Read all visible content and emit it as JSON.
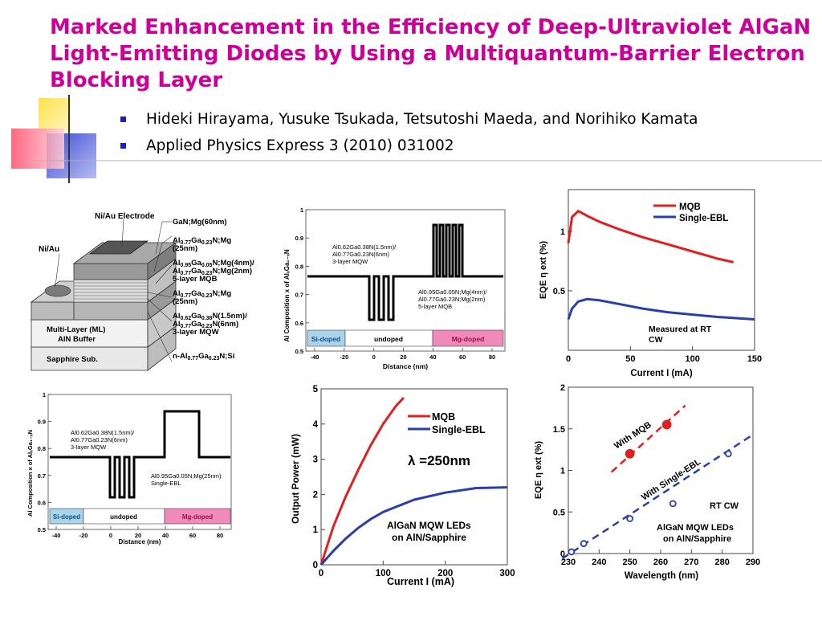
{
  "slide": {
    "title": "Marked Enhancement in the Efficiency of Deep-Ultraviolet AlGaN Light-Emitting Diodes by Using a Multiquantum-Barrier Electron Blocking Layer",
    "bullets": [
      "Hideki Hirayama, Yusuke Tsukada, Tetsutoshi Maeda, and Norihiko Kamata",
      "Applied Physics Express 3 (2010) 031002"
    ]
  },
  "colors": {
    "title": "#cc0099",
    "bullet": "#1f1fbf",
    "mqb": "#e02020",
    "ebl": "#2a3fa8",
    "si_doped": "#a9d4ea",
    "mg_doped": "#f08ab8"
  },
  "structure": {
    "labels": {
      "electrode": "Ni/Au Electrode",
      "niau": "Ni/Au",
      "gan": "GaN;Mg(60nm)",
      "ml": "Multi-Layer (ML)",
      "ml2": "AlN Buffer",
      "sapphire": "Sapphire Sub."
    },
    "layers": [
      [
        "Al",
        "0.77",
        "Ga",
        "0.23",
        "N;Mg"
      ],
      [
        "(25nm)"
      ],
      [
        "Al",
        "0.95",
        "Ga",
        "0.05",
        "N;Mg(4nm)/"
      ],
      [
        "Al",
        "0.77",
        "Ga",
        "0.23",
        "N;Mg(2nm)"
      ],
      [
        "5-layer MQB"
      ],
      [
        "Al",
        "0.77",
        "Ga",
        "0.23",
        "N;Mg"
      ],
      [
        "(25nm)"
      ],
      [
        "Al",
        "0.62",
        "Ga",
        "0.38",
        "N(1.5nm)/"
      ],
      [
        "Al",
        "0.77",
        "Ga",
        "0.23",
        "N(6nm)"
      ],
      [
        "3-layer MQW"
      ],
      [
        "n-Al",
        "0.77",
        "Ga",
        "0.23",
        "N;Si"
      ]
    ]
  },
  "profile_mqb": {
    "ylabel": "Al Composition x of AlₓGa₁₋ₓN",
    "xlabel": "Distance (nm)",
    "yticks": [
      "0.5",
      "0.6",
      "0.7",
      "0.8",
      "0.9",
      "1"
    ],
    "xticks": [
      "-40",
      "-20",
      "0",
      "20",
      "40",
      "60",
      "80"
    ],
    "ann_left": [
      "Al0.62Ga0.38N(1.5nm)/",
      "Al0.77Ga0.23N(6nm)",
      "3-layer MQW"
    ],
    "ann_right": [
      "Al0.95Ga0.05N;Mg(4nm)/",
      "Al0.77Ga0.23N;Mg(2nm)",
      "5-layer MQB"
    ],
    "regions": [
      "Si-doped",
      "undoped",
      "Mg-doped"
    ]
  },
  "profile_ebl": {
    "ylabel": "Al Composition x of AlₓGa₁₋ₓN",
    "xlabel": "Distance (nm)",
    "yticks": [
      "0.5",
      "0.6",
      "0.7",
      "0.8",
      "0.9",
      "1"
    ],
    "xticks": [
      "-40",
      "-20",
      "0",
      "20",
      "40",
      "60",
      "80"
    ],
    "ann_left": [
      "Al0.62Ga0.38N(1.5nm)/",
      "Al0.77Ga0.23N(6nm)",
      "3-layer MQW"
    ],
    "ann_right": [
      "Al0.95Ga0.05N;Mg(25nm)",
      "Single-EBL"
    ],
    "regions": [
      "Si-doped",
      "undoped",
      "Mg-doped"
    ]
  },
  "chart_data": [
    {
      "type": "line",
      "title": "",
      "xlabel": "Current I (mA)",
      "ylabel": "EQE η ext (%)",
      "xlim": [
        0,
        150
      ],
      "ylim": [
        0,
        1.35
      ],
      "xticks": [
        0,
        50,
        100,
        150
      ],
      "yticks": [
        0.5,
        1
      ],
      "ytick_labels": [
        "0.5",
        "1"
      ],
      "annotation": [
        "Measured at RT",
        "CW"
      ],
      "legend": "top-right",
      "series": [
        {
          "name": "MQB",
          "x": [
            0,
            3,
            8,
            15,
            25,
            40,
            60,
            80,
            100,
            120,
            133
          ],
          "y": [
            0.9,
            1.12,
            1.17,
            1.13,
            1.08,
            1.02,
            0.95,
            0.89,
            0.83,
            0.77,
            0.74
          ]
        },
        {
          "name": "Single-EBL",
          "x": [
            0,
            3,
            8,
            15,
            25,
            40,
            60,
            80,
            100,
            120,
            150
          ],
          "y": [
            0.26,
            0.35,
            0.41,
            0.43,
            0.42,
            0.39,
            0.35,
            0.32,
            0.3,
            0.28,
            0.26
          ]
        }
      ]
    },
    {
      "type": "line",
      "title": "",
      "xlabel": "Current I (mA)",
      "ylabel": "Output Power (mW)",
      "xlim": [
        0,
        300
      ],
      "ylim": [
        0,
        5
      ],
      "xticks": [
        0,
        100,
        200,
        300
      ],
      "yticks": [
        0,
        1,
        2,
        3,
        4,
        5
      ],
      "annotation": [
        "λ =250nm",
        "AlGaN MQW LEDs",
        "on AlN/Sapphire"
      ],
      "legend": "top-right",
      "series": [
        {
          "name": "MQB",
          "x": [
            0,
            10,
            20,
            40,
            60,
            80,
            100,
            120,
            133
          ],
          "y": [
            0,
            0.55,
            1.1,
            1.95,
            2.7,
            3.4,
            4.0,
            4.5,
            4.75
          ]
        },
        {
          "name": "Single-EBL",
          "x": [
            0,
            10,
            20,
            40,
            60,
            80,
            100,
            150,
            200,
            250,
            300
          ],
          "y": [
            0,
            0.2,
            0.4,
            0.75,
            1.05,
            1.3,
            1.5,
            1.85,
            2.05,
            2.18,
            2.2
          ]
        }
      ]
    },
    {
      "type": "scatter",
      "title": "",
      "xlabel": "Wavelength (nm)",
      "ylabel": "EQE η ext (%)",
      "xlim": [
        230,
        290
      ],
      "ylim": [
        0,
        2
      ],
      "xticks": [
        230,
        240,
        250,
        260,
        270,
        280,
        290
      ],
      "yticks": [
        0,
        0.5,
        1,
        1.5,
        2
      ],
      "annotation": [
        "RT CW",
        "AlGaN MQW LEDs",
        "on AlN/Sapphire"
      ],
      "series": [
        {
          "name": "With MQB",
          "x": [
            250,
            262
          ],
          "y": [
            1.2,
            1.55
          ],
          "trend": [
            [
              244,
              0.98
            ],
            [
              268,
              1.78
            ]
          ]
        },
        {
          "name": "With Single-EBL",
          "x": [
            231,
            235,
            250,
            264,
            282
          ],
          "y": [
            0.02,
            0.12,
            0.42,
            0.6,
            1.2
          ],
          "trend": [
            [
              228,
              -0.06
            ],
            [
              290,
              1.43
            ]
          ]
        }
      ]
    }
  ]
}
